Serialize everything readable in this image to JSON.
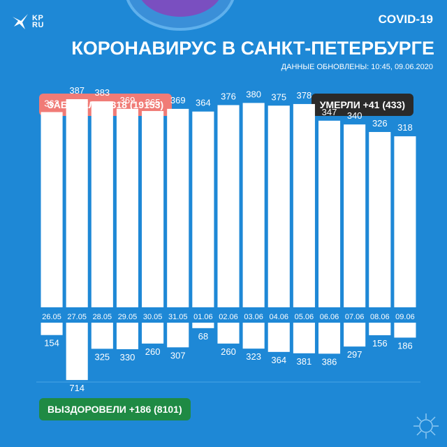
{
  "header": {
    "logo_text_line1": "KP",
    "logo_text_line2": "RU",
    "covid_tag": "COVID-19",
    "title": "КОРОНАВИРУС В САНКТ-ПЕТЕРБУРГЕ",
    "updated": "ДАННЫЕ ОБНОВЛЕНЫ: 10:45, 09.06.2020"
  },
  "badges": {
    "cases": "ЗАБОЛЕЛИ +318 (19153)",
    "deaths": "УМЕРЛИ +41 (433)",
    "recovered": "ВЫЗДОРОВЕЛИ +186 (8101)"
  },
  "colors": {
    "background": "#1e88d6",
    "bars": "#ffffff",
    "cases_badge": "#f07b76",
    "deaths_badge": "#2a2a2a",
    "recovered_badge": "#1f8a44"
  },
  "chart_data": {
    "type": "bar",
    "categories": [
      "26.05",
      "27.05",
      "28.05",
      "29.05",
      "30.05",
      "31.05",
      "01.06",
      "02.06",
      "03.06",
      "04.06",
      "05.06",
      "06.06",
      "07.06",
      "08.06",
      "09.06"
    ],
    "series": [
      {
        "values": [
          363,
          387,
          383,
          369,
          365,
          369,
          364,
          376,
          380,
          375,
          378,
          347,
          340,
          326,
          318
        ]
      },
      {
        "values": [
          154,
          714,
          325,
          330,
          260,
          307,
          68,
          260,
          323,
          364,
          381,
          386,
          297,
          156,
          186
        ]
      }
    ],
    "grid": false,
    "legend": "none"
  }
}
